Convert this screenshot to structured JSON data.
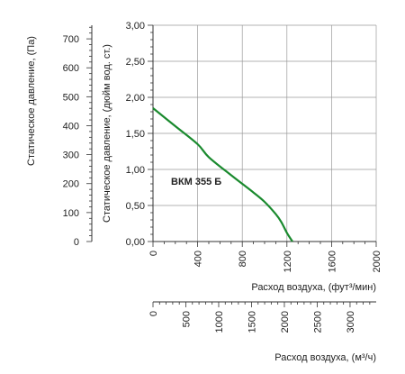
{
  "chart_data": {
    "type": "line",
    "title": "",
    "series": [
      {
        "name": "ВКМ 355 Б",
        "color": "#1a8a2e",
        "x": [
          0,
          200,
          400,
          500,
          700,
          900,
          1000,
          1100,
          1150,
          1200,
          1250
        ],
        "y": [
          1.85,
          1.6,
          1.35,
          1.17,
          0.92,
          0.68,
          0.55,
          0.38,
          0.27,
          0.12,
          0.0
        ]
      }
    ],
    "primary_y": {
      "label": "Статическое давление, (дюйм вод. ст.)",
      "ticks": [
        "3,00",
        "2,50",
        "2,00",
        "1,50",
        "1,00",
        "0,50",
        "0,00"
      ],
      "tick_values": [
        3.0,
        2.5,
        2.0,
        1.5,
        1.0,
        0.5,
        0.0
      ],
      "range": [
        0,
        3
      ]
    },
    "secondary_y": {
      "label": "Статическое давление, (Па)",
      "ticks": [
        "700",
        "600",
        "500",
        "400",
        "300",
        "200",
        "100",
        "0"
      ],
      "tick_values": [
        700,
        600,
        500,
        400,
        300,
        200,
        100,
        0
      ],
      "range": [
        0,
        747
      ]
    },
    "primary_x": {
      "label": "Расход воздуха, (фут³/мин)",
      "ticks": [
        "0",
        "400",
        "800",
        "1200",
        "1600",
        "2000"
      ],
      "tick_values": [
        0,
        400,
        800,
        1200,
        1600,
        2000
      ],
      "range": [
        0,
        2000
      ]
    },
    "secondary_x": {
      "label": "Расход воздуха, (м³/ч)",
      "ticks": [
        "0",
        "500",
        "1000",
        "1500",
        "2000",
        "2500",
        "3000"
      ],
      "tick_values": [
        0,
        500,
        1000,
        1500,
        2000,
        2500,
        3000
      ],
      "range": [
        0,
        3398
      ]
    },
    "grid": true,
    "legend": "inline-label"
  }
}
